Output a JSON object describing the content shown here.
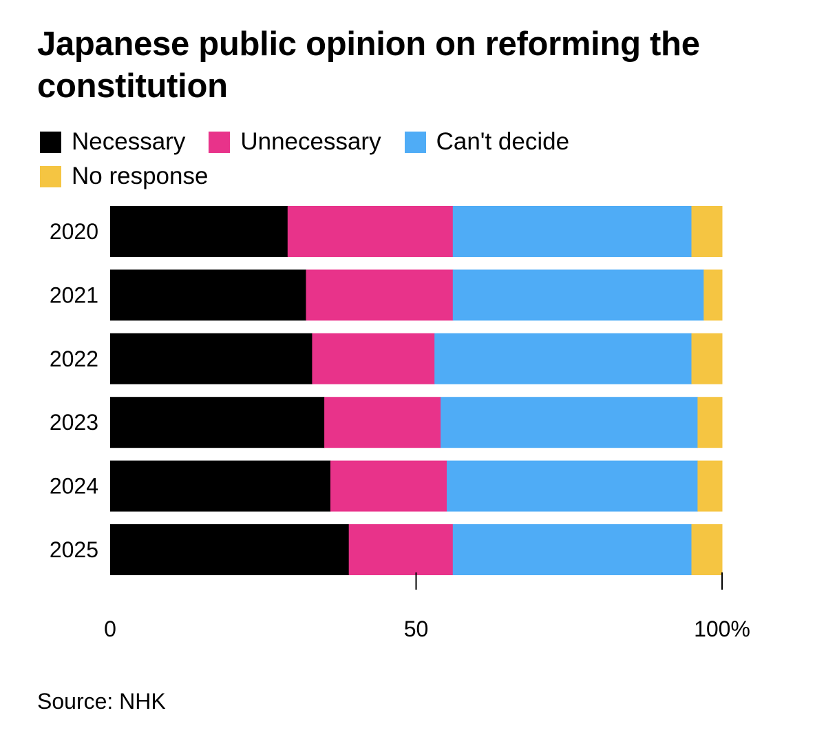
{
  "chart_data": {
    "type": "bar",
    "orientation": "horizontal",
    "stacked": true,
    "title": "Japanese public opinion on reforming the constitution",
    "categories": [
      "2020",
      "2021",
      "2022",
      "2023",
      "2024",
      "2025"
    ],
    "series": [
      {
        "name": "Necessary",
        "color": "#000000",
        "values": [
          29,
          32,
          33,
          35,
          36,
          39
        ]
      },
      {
        "name": "Unnecessary",
        "color": "#e8338a",
        "values": [
          27,
          24,
          20,
          19,
          19,
          17
        ]
      },
      {
        "name": "Can't decide",
        "color": "#4facf6",
        "values": [
          39,
          41,
          42,
          42,
          41,
          39
        ]
      },
      {
        "name": "No response",
        "color": "#f5c542",
        "values": [
          5,
          3,
          5,
          4,
          4,
          5
        ]
      }
    ],
    "xlim": [
      0,
      100
    ],
    "xticks": [
      0,
      50,
      100
    ],
    "xtick_labels": [
      "0",
      "50",
      "100%"
    ],
    "legend_position": "top",
    "grid": false,
    "source": "Source: NHK"
  }
}
